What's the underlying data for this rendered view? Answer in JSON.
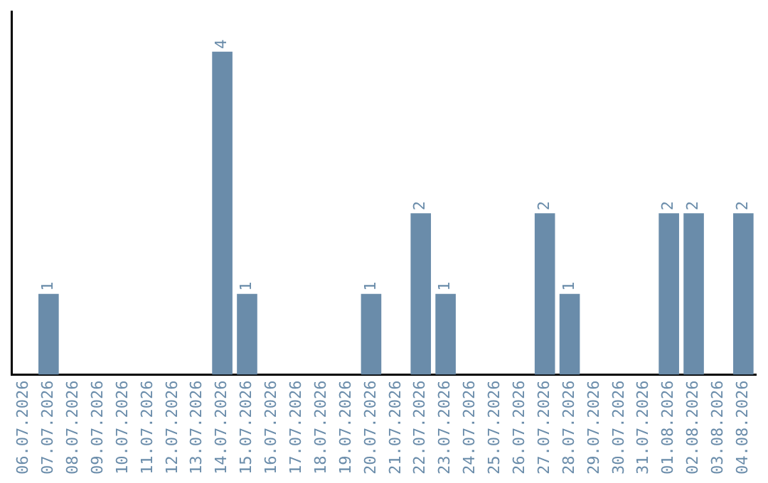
{
  "chart_data": {
    "type": "bar",
    "categories": [
      "06.07.2026",
      "07.07.2026",
      "08.07.2026",
      "09.07.2026",
      "10.07.2026",
      "11.07.2026",
      "12.07.2026",
      "13.07.2026",
      "14.07.2026",
      "15.07.2026",
      "16.07.2026",
      "17.07.2026",
      "18.07.2026",
      "19.07.2026",
      "20.07.2026",
      "21.07.2026",
      "22.07.2026",
      "23.07.2026",
      "24.07.2026",
      "25.07.2026",
      "26.07.2026",
      "27.07.2026",
      "28.07.2026",
      "29.07.2026",
      "30.07.2026",
      "31.07.2026",
      "01.08.2026",
      "02.08.2026",
      "03.08.2026",
      "04.08.2026"
    ],
    "values": [
      0,
      1,
      0,
      0,
      0,
      0,
      0,
      0,
      4,
      1,
      0,
      0,
      0,
      0,
      1,
      0,
      2,
      1,
      0,
      0,
      0,
      2,
      1,
      0,
      0,
      0,
      2,
      2,
      0,
      2
    ],
    "value_labels": [
      null,
      "1",
      null,
      null,
      null,
      null,
      null,
      null,
      "4",
      "1",
      null,
      null,
      null,
      null,
      "1",
      null,
      "2",
      "1",
      null,
      null,
      null,
      "2",
      "1",
      null,
      null,
      null,
      "2",
      "2",
      null,
      "2"
    ],
    "color": "#6a8caa",
    "tick_labels": "x",
    "grid": false,
    "legend": false
  }
}
